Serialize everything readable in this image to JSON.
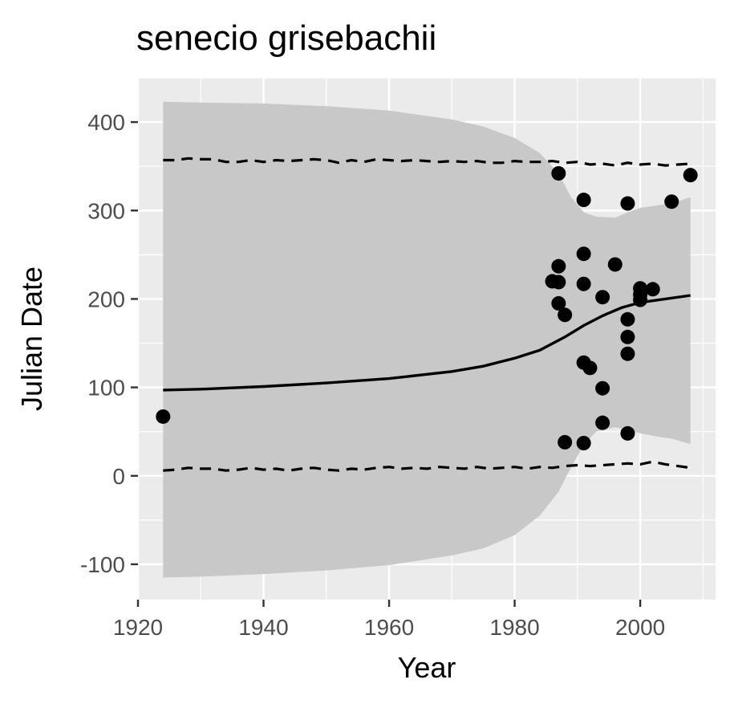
{
  "chart_data": {
    "type": "scatter",
    "title": "senecio grisebachii",
    "xlabel": "Year",
    "ylabel": "Julian Date",
    "xlim": [
      1920,
      2012
    ],
    "ylim": [
      -140,
      450
    ],
    "x_ticks": [
      1920,
      1940,
      1960,
      1980,
      2000
    ],
    "y_ticks": [
      -100,
      0,
      100,
      200,
      300,
      400
    ],
    "x_tick_labels": [
      "1920",
      "1940",
      "1960",
      "1980",
      "2000"
    ],
    "y_tick_labels": [
      "-100",
      "0",
      "100",
      "200",
      "300",
      "400"
    ],
    "grid": true,
    "colors": {
      "panel_background": "#ebebeb",
      "grid_line": "#ffffff",
      "ribbon": "#c8c8c8",
      "points": "#000000",
      "fit_line": "#000000"
    },
    "points": [
      {
        "x": 1924,
        "y": 67
      },
      {
        "x": 1986,
        "y": 220
      },
      {
        "x": 1987,
        "y": 342
      },
      {
        "x": 1987,
        "y": 237
      },
      {
        "x": 1987,
        "y": 219
      },
      {
        "x": 1987,
        "y": 195
      },
      {
        "x": 1988,
        "y": 182
      },
      {
        "x": 1988,
        "y": 38
      },
      {
        "x": 1991,
        "y": 312
      },
      {
        "x": 1991,
        "y": 251
      },
      {
        "x": 1991,
        "y": 217
      },
      {
        "x": 1991,
        "y": 128
      },
      {
        "x": 1991,
        "y": 37
      },
      {
        "x": 1992,
        "y": 122
      },
      {
        "x": 1994,
        "y": 202
      },
      {
        "x": 1994,
        "y": 99
      },
      {
        "x": 1994,
        "y": 60
      },
      {
        "x": 1996,
        "y": 239
      },
      {
        "x": 1998,
        "y": 308
      },
      {
        "x": 1998,
        "y": 177
      },
      {
        "x": 1998,
        "y": 157
      },
      {
        "x": 1998,
        "y": 138
      },
      {
        "x": 1998,
        "y": 48
      },
      {
        "x": 2000,
        "y": 212
      },
      {
        "x": 2000,
        "y": 205
      },
      {
        "x": 2000,
        "y": 199
      },
      {
        "x": 2002,
        "y": 211
      },
      {
        "x": 2005,
        "y": 310
      },
      {
        "x": 2008,
        "y": 340
      }
    ],
    "fit_line": [
      {
        "x": 1924,
        "y": 97
      },
      {
        "x": 1930,
        "y": 98
      },
      {
        "x": 1940,
        "y": 101
      },
      {
        "x": 1950,
        "y": 105
      },
      {
        "x": 1960,
        "y": 110
      },
      {
        "x": 1970,
        "y": 118
      },
      {
        "x": 1975,
        "y": 124
      },
      {
        "x": 1980,
        "y": 133
      },
      {
        "x": 1984,
        "y": 142
      },
      {
        "x": 1988,
        "y": 157
      },
      {
        "x": 1991,
        "y": 170
      },
      {
        "x": 1994,
        "y": 181
      },
      {
        "x": 1997,
        "y": 190
      },
      {
        "x": 2000,
        "y": 196
      },
      {
        "x": 2004,
        "y": 200
      },
      {
        "x": 2008,
        "y": 204
      }
    ],
    "ribbon_upper": [
      {
        "x": 1924,
        "y": 423
      },
      {
        "x": 1930,
        "y": 422
      },
      {
        "x": 1940,
        "y": 421
      },
      {
        "x": 1950,
        "y": 418
      },
      {
        "x": 1960,
        "y": 413
      },
      {
        "x": 1970,
        "y": 403
      },
      {
        "x": 1975,
        "y": 395
      },
      {
        "x": 1980,
        "y": 382
      },
      {
        "x": 1984,
        "y": 365
      },
      {
        "x": 1987,
        "y": 342
      },
      {
        "x": 1989,
        "y": 315
      },
      {
        "x": 1991,
        "y": 298
      },
      {
        "x": 1993,
        "y": 293
      },
      {
        "x": 1996,
        "y": 292
      },
      {
        "x": 1998,
        "y": 298
      },
      {
        "x": 2000,
        "y": 303
      },
      {
        "x": 2003,
        "y": 306
      },
      {
        "x": 2005,
        "y": 308
      },
      {
        "x": 2008,
        "y": 315
      }
    ],
    "ribbon_lower": [
      {
        "x": 1924,
        "y": -115
      },
      {
        "x": 1930,
        "y": -114
      },
      {
        "x": 1940,
        "y": -111
      },
      {
        "x": 1950,
        "y": -107
      },
      {
        "x": 1960,
        "y": -101
      },
      {
        "x": 1970,
        "y": -90
      },
      {
        "x": 1975,
        "y": -82
      },
      {
        "x": 1980,
        "y": -67
      },
      {
        "x": 1984,
        "y": -45
      },
      {
        "x": 1987,
        "y": -18
      },
      {
        "x": 1989,
        "y": 10
      },
      {
        "x": 1991,
        "y": 35
      },
      {
        "x": 1993,
        "y": 50
      },
      {
        "x": 1996,
        "y": 55
      },
      {
        "x": 1998,
        "y": 52
      },
      {
        "x": 2000,
        "y": 48
      },
      {
        "x": 2003,
        "y": 44
      },
      {
        "x": 2005,
        "y": 42
      },
      {
        "x": 2008,
        "y": 36
      }
    ],
    "dashed_upper": [
      {
        "x": 1924,
        "y": 357
      },
      {
        "x": 1926,
        "y": 357
      },
      {
        "x": 1928,
        "y": 359
      },
      {
        "x": 1930,
        "y": 358
      },
      {
        "x": 1932,
        "y": 358
      },
      {
        "x": 1934,
        "y": 355
      },
      {
        "x": 1936,
        "y": 355
      },
      {
        "x": 1938,
        "y": 357
      },
      {
        "x": 1940,
        "y": 355
      },
      {
        "x": 1942,
        "y": 357
      },
      {
        "x": 1944,
        "y": 356
      },
      {
        "x": 1946,
        "y": 357
      },
      {
        "x": 1948,
        "y": 358
      },
      {
        "x": 1950,
        "y": 357
      },
      {
        "x": 1952,
        "y": 354
      },
      {
        "x": 1954,
        "y": 357
      },
      {
        "x": 1956,
        "y": 355
      },
      {
        "x": 1958,
        "y": 358
      },
      {
        "x": 1960,
        "y": 357
      },
      {
        "x": 1962,
        "y": 356
      },
      {
        "x": 1964,
        "y": 357
      },
      {
        "x": 1966,
        "y": 356
      },
      {
        "x": 1968,
        "y": 355
      },
      {
        "x": 1970,
        "y": 356
      },
      {
        "x": 1972,
        "y": 355
      },
      {
        "x": 1974,
        "y": 356
      },
      {
        "x": 1976,
        "y": 354
      },
      {
        "x": 1978,
        "y": 354
      },
      {
        "x": 1980,
        "y": 356
      },
      {
        "x": 1982,
        "y": 355
      },
      {
        "x": 1984,
        "y": 355
      },
      {
        "x": 1986,
        "y": 356
      },
      {
        "x": 1988,
        "y": 354
      },
      {
        "x": 1990,
        "y": 355
      },
      {
        "x": 1992,
        "y": 352
      },
      {
        "x": 1994,
        "y": 353
      },
      {
        "x": 1996,
        "y": 351
      },
      {
        "x": 1998,
        "y": 354
      },
      {
        "x": 2000,
        "y": 352
      },
      {
        "x": 2002,
        "y": 353
      },
      {
        "x": 2004,
        "y": 351
      },
      {
        "x": 2006,
        "y": 352
      },
      {
        "x": 2008,
        "y": 353
      }
    ],
    "dashed_lower": [
      {
        "x": 1924,
        "y": 6
      },
      {
        "x": 1926,
        "y": 7
      },
      {
        "x": 1928,
        "y": 9
      },
      {
        "x": 1930,
        "y": 8
      },
      {
        "x": 1932,
        "y": 8
      },
      {
        "x": 1934,
        "y": 6
      },
      {
        "x": 1936,
        "y": 7
      },
      {
        "x": 1938,
        "y": 9
      },
      {
        "x": 1940,
        "y": 7
      },
      {
        "x": 1942,
        "y": 8
      },
      {
        "x": 1944,
        "y": 6
      },
      {
        "x": 1946,
        "y": 8
      },
      {
        "x": 1948,
        "y": 9
      },
      {
        "x": 1950,
        "y": 7
      },
      {
        "x": 1952,
        "y": 6
      },
      {
        "x": 1954,
        "y": 8
      },
      {
        "x": 1956,
        "y": 7
      },
      {
        "x": 1958,
        "y": 9
      },
      {
        "x": 1960,
        "y": 10
      },
      {
        "x": 1962,
        "y": 8
      },
      {
        "x": 1964,
        "y": 9
      },
      {
        "x": 1966,
        "y": 8
      },
      {
        "x": 1968,
        "y": 10
      },
      {
        "x": 1970,
        "y": 9
      },
      {
        "x": 1972,
        "y": 8
      },
      {
        "x": 1974,
        "y": 10
      },
      {
        "x": 1976,
        "y": 8
      },
      {
        "x": 1978,
        "y": 9
      },
      {
        "x": 1980,
        "y": 10
      },
      {
        "x": 1982,
        "y": 8
      },
      {
        "x": 1984,
        "y": 10
      },
      {
        "x": 1986,
        "y": 9
      },
      {
        "x": 1988,
        "y": 11
      },
      {
        "x": 1990,
        "y": 12
      },
      {
        "x": 1992,
        "y": 11
      },
      {
        "x": 1994,
        "y": 12
      },
      {
        "x": 1996,
        "y": 13
      },
      {
        "x": 1998,
        "y": 14
      },
      {
        "x": 2000,
        "y": 13
      },
      {
        "x": 2002,
        "y": 16
      },
      {
        "x": 2004,
        "y": 13
      },
      {
        "x": 2006,
        "y": 11
      },
      {
        "x": 2008,
        "y": 9
      }
    ]
  }
}
